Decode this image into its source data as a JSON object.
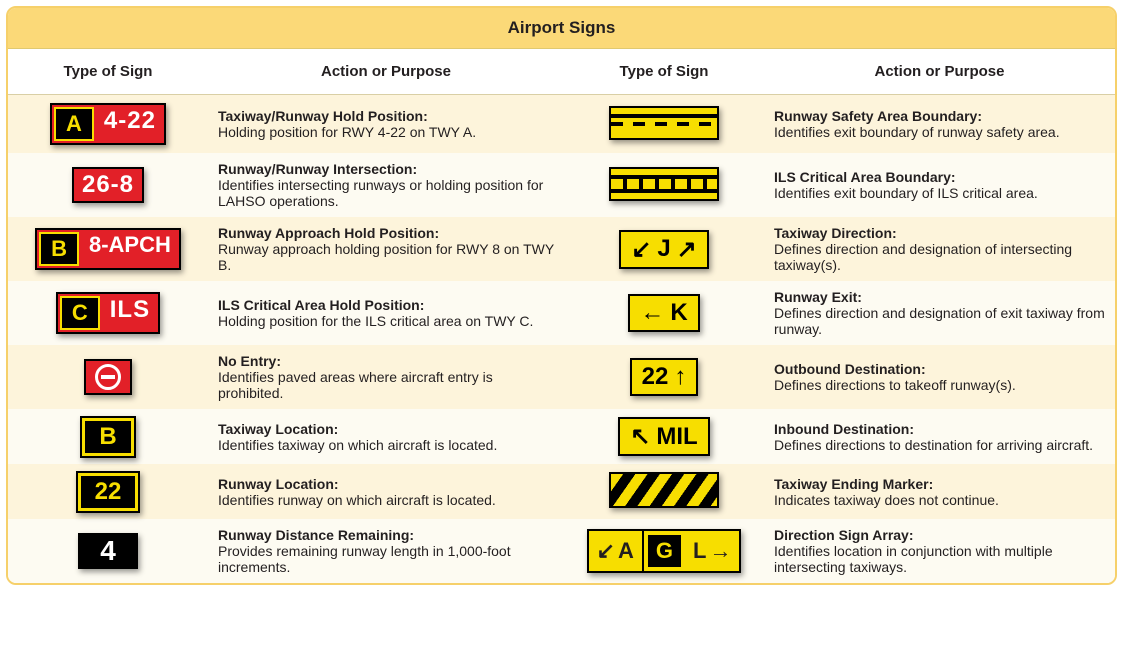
{
  "title": "Airport Signs",
  "headers": {
    "c1": "Type of Sign",
    "c2": "Action or Purpose",
    "c3": "Type of Sign",
    "c4": "Action or Purpose"
  },
  "colors": {
    "header_bg": "#fbd978",
    "row_odd": "#fdf4db",
    "row_even": "#fdfbf2",
    "border": "#f6d06a",
    "red": "#e22028",
    "yellow": "#f7de00",
    "black": "#000000",
    "white": "#ffffff"
  },
  "left": [
    {
      "sign": {
        "kind": "mandatory",
        "loc": "A",
        "value": "4-22"
      },
      "head": "Taxiway/Runway Hold Position:",
      "desc": "Holding position for RWY 4-22 on TWY A."
    },
    {
      "sign": {
        "kind": "mandatory",
        "value": "26-8"
      },
      "head": "Runway/Runway Intersection:",
      "desc": "Identifies intersecting runways or holding position for LAHSO operations."
    },
    {
      "sign": {
        "kind": "mandatory",
        "loc": "B",
        "value": "8-APCH"
      },
      "head": "Runway Approach Hold Position:",
      "desc": "Runway approach holding position for RWY 8 on TWY B."
    },
    {
      "sign": {
        "kind": "mandatory",
        "loc": "C",
        "value": "ILS"
      },
      "head": "ILS Critical Area Hold Position:",
      "desc": "Holding position for the ILS critical area on TWY C."
    },
    {
      "sign": {
        "kind": "noentry"
      },
      "head": "No Entry:",
      "desc": "Identifies paved areas where aircraft entry is prohibited."
    },
    {
      "sign": {
        "kind": "location",
        "value": "B"
      },
      "head": "Taxiway Location:",
      "desc": "Identifies taxiway on which aircraft is located."
    },
    {
      "sign": {
        "kind": "location",
        "value": "22"
      },
      "head": "Runway Location:",
      "desc": "Identifies runway on which aircraft is located."
    },
    {
      "sign": {
        "kind": "distance",
        "value": "4"
      },
      "head": "Runway Distance Remaining:",
      "desc": "Provides remaining runway length in 1,000-foot increments."
    }
  ],
  "right": [
    {
      "sign": {
        "kind": "marking_safety"
      },
      "head": "Runway Safety Area Boundary:",
      "desc": "Identifies exit boundary of runway safety area."
    },
    {
      "sign": {
        "kind": "marking_ils"
      },
      "head": "ILS Critical Area Boundary:",
      "desc": "Identifies exit boundary of ILS critical area."
    },
    {
      "sign": {
        "kind": "direction",
        "pre": "↙",
        "value": "J",
        "post": "↗"
      },
      "head": "Taxiway Direction:",
      "desc": "Defines direction and designation of intersecting taxiway(s)."
    },
    {
      "sign": {
        "kind": "direction",
        "pre": "←",
        "value": "K"
      },
      "head": "Runway Exit:",
      "desc": "Defines direction and designation of exit taxiway from runway."
    },
    {
      "sign": {
        "kind": "direction",
        "value": "22",
        "post": "↑"
      },
      "head": "Outbound Destination:",
      "desc": "Defines directions to takeoff runway(s)."
    },
    {
      "sign": {
        "kind": "direction",
        "pre": "↖",
        "value": "MIL"
      },
      "head": "Inbound Destination:",
      "desc": "Defines directions to destination for arriving aircraft."
    },
    {
      "sign": {
        "kind": "stripes"
      },
      "head": "Taxiway Ending Marker:",
      "desc": "Indicates taxiway does not continue."
    },
    {
      "sign": {
        "kind": "array",
        "segs": [
          {
            "a": "↙",
            "t": "A"
          },
          {
            "loc": "G"
          },
          {
            "t": "L",
            "a2": "→"
          }
        ]
      },
      "head": "Direction Sign Array:",
      "desc": "Identifies location in conjunction with multiple intersecting taxiways."
    }
  ]
}
